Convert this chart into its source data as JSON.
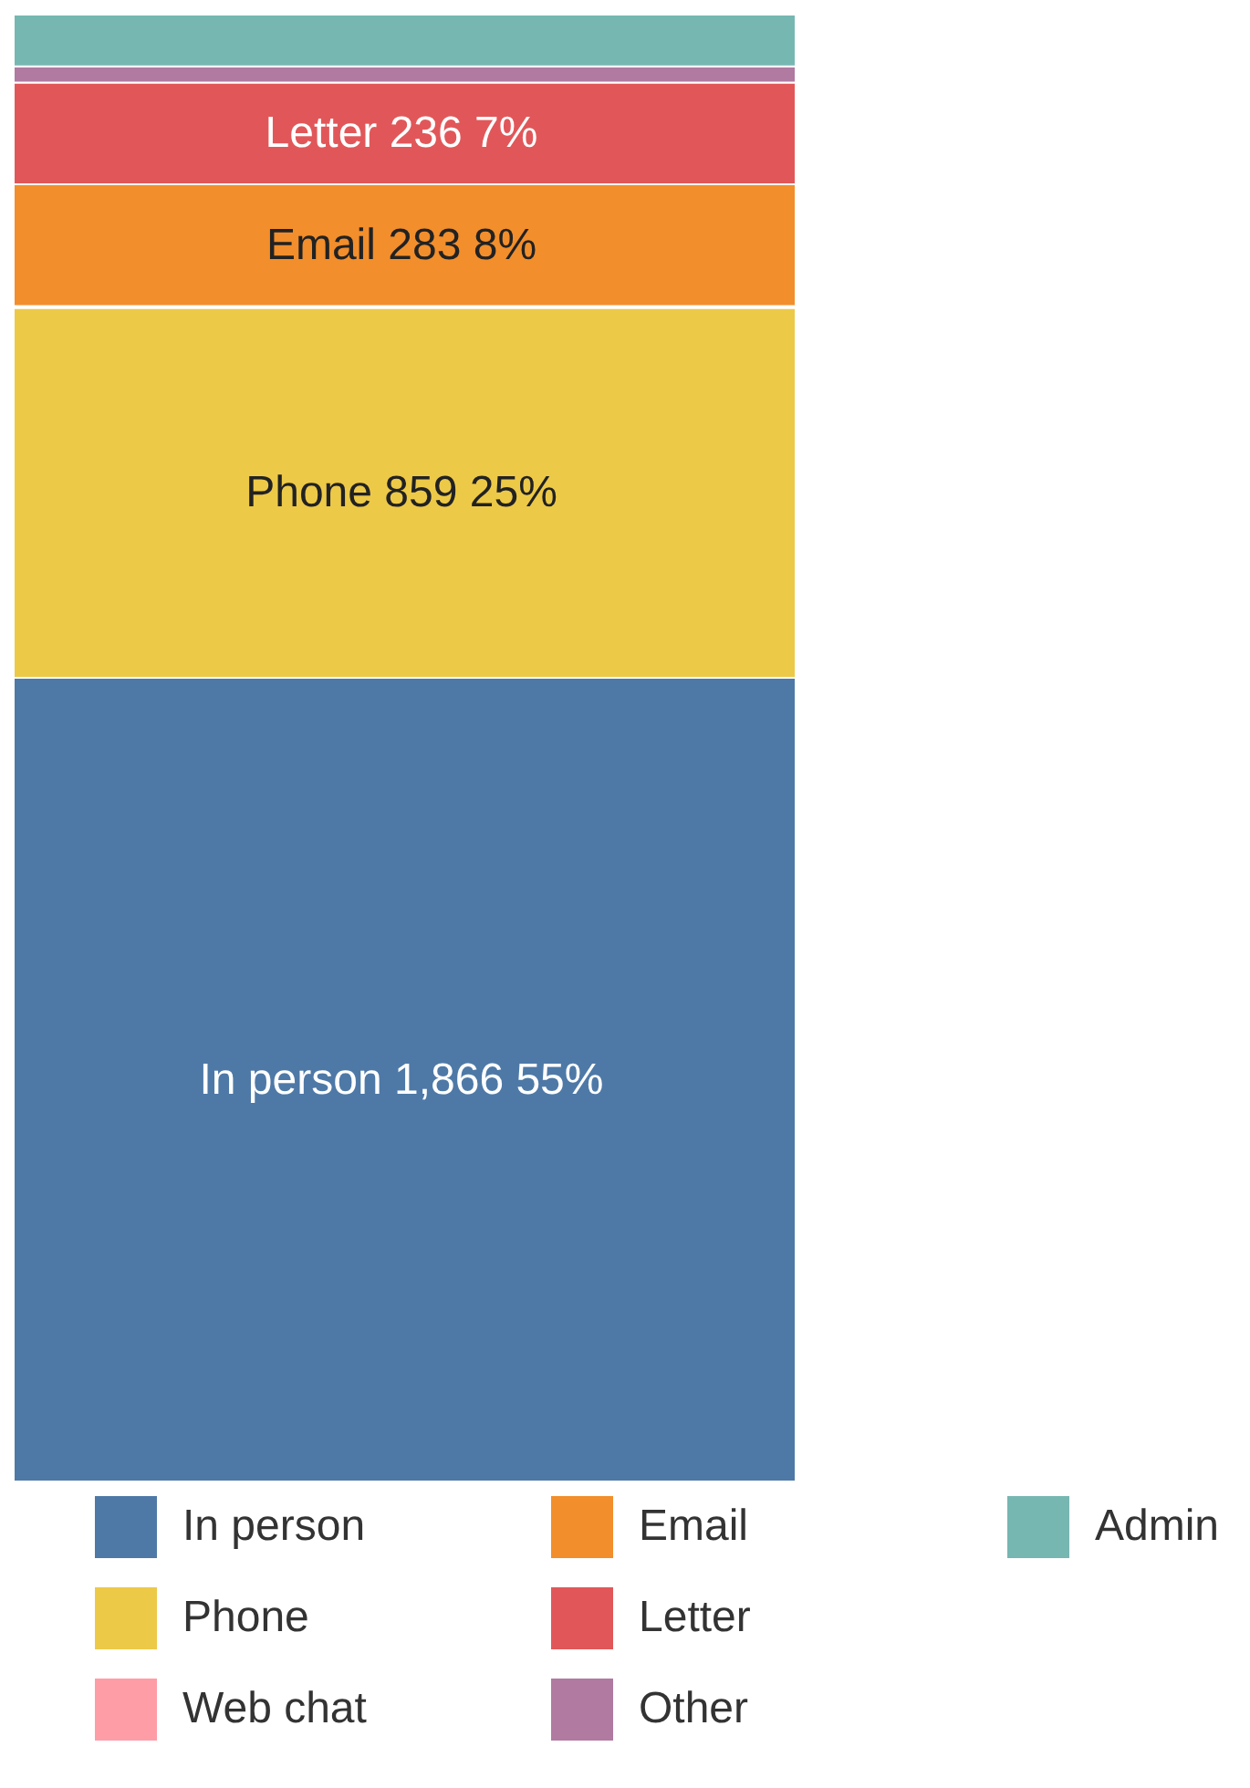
{
  "chart_data": {
    "type": "bar",
    "stacked": true,
    "categories": [
      null
    ],
    "legend": "bottom",
    "series": [
      {
        "name": "In person",
        "color": "#4e79a7",
        "values": [
          1866
        ],
        "value_labels": [
          "In person 1,866 55%"
        ]
      },
      {
        "name": "Phone",
        "color": "#edc948",
        "values": [
          859
        ],
        "value_labels": [
          "Phone 859 25%"
        ]
      },
      {
        "name": "Web chat",
        "color": "#ff9da7",
        "values": [
          4
        ],
        "value_labels": [
          null
        ]
      },
      {
        "name": "Email",
        "color": "#f28e2b",
        "values": [
          283
        ],
        "value_labels": [
          "Email 283 8%"
        ]
      },
      {
        "name": "Letter",
        "color": "#e15759",
        "values": [
          236
        ],
        "value_labels": [
          "Letter 236 7%"
        ]
      },
      {
        "name": "Other",
        "color": "#b07aa1",
        "values": [
          38
        ],
        "value_labels": [
          null
        ]
      },
      {
        "name": "Admin",
        "color": "#76b7b2",
        "values": [
          120
        ],
        "value_labels": [
          null
        ]
      }
    ]
  }
}
